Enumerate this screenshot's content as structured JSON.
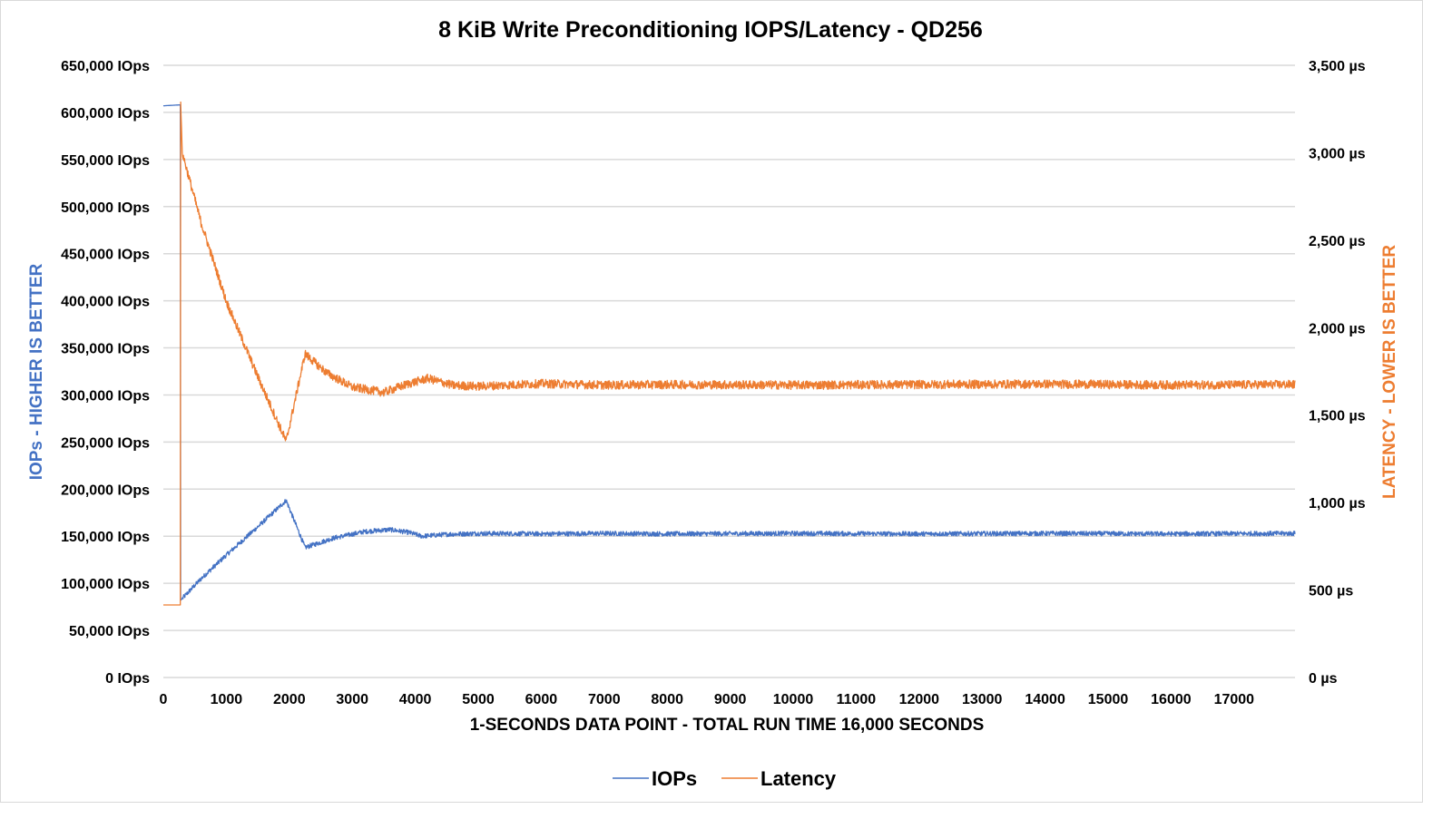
{
  "chart_data": {
    "type": "line",
    "title": "8 KiB Write Preconditioning IOPS/Latency - QD256",
    "xlabel": "1-SECONDS DATA POINT - TOTAL RUN TIME 16,000 SECONDS",
    "ylabel_left": "IOPs - HIGHER IS BETTER",
    "ylabel_right": "LATENCY - LOWER IS BETTER",
    "xlim": [
      0,
      17968
    ],
    "ylim_left": [
      0,
      650000
    ],
    "ylim_right": [
      0,
      3500
    ],
    "grid": true,
    "legend_position": "bottom",
    "x_ticks": [
      "0",
      "1000",
      "2000",
      "3000",
      "4000",
      "5000",
      "6000",
      "7000",
      "8000",
      "9000",
      "10000",
      "11000",
      "12000",
      "13000",
      "14000",
      "15000",
      "16000",
      "17000"
    ],
    "x_tick_values": [
      0,
      1000,
      2000,
      3000,
      4000,
      5000,
      6000,
      7000,
      8000,
      9000,
      10000,
      11000,
      12000,
      13000,
      14000,
      15000,
      16000,
      17000
    ],
    "y_left_ticks": [
      "0 IOps",
      "50,000 IOps",
      "100,000 IOps",
      "150,000 IOps",
      "200,000 IOps",
      "250,000 IOps",
      "300,000 IOps",
      "350,000 IOps",
      "400,000 IOps",
      "450,000 IOps",
      "500,000 IOps",
      "550,000 IOps",
      "600,000 IOps",
      "650,000 IOps"
    ],
    "y_left_tick_values": [
      0,
      50000,
      100000,
      150000,
      200000,
      250000,
      300000,
      350000,
      400000,
      450000,
      500000,
      550000,
      600000,
      650000
    ],
    "y_right_ticks": [
      "0 µs",
      "500 µs",
      "1,000 µs",
      "1,500 µs",
      "2,000 µs",
      "2,500 µs",
      "3,000 µs",
      "3,500 µs"
    ],
    "y_right_tick_values": [
      0,
      500,
      1000,
      1500,
      2000,
      2500,
      3000,
      3500
    ],
    "series": [
      {
        "name": "IOPs",
        "axis": "left",
        "color": "#4472C4",
        "noise": 2500,
        "x": [
          0,
          270,
          275,
          600,
          1000,
          1500,
          1950,
          2250,
          2700,
          3200,
          3600,
          3900,
          4100,
          4500,
          5000,
          6000,
          7000,
          8000,
          10000,
          12000,
          14000,
          16000,
          17968
        ],
        "values": [
          607000,
          608000,
          82000,
          105000,
          130000,
          160000,
          188000,
          138000,
          148000,
          155000,
          157000,
          154000,
          150000,
          152000,
          153000,
          152500,
          153000,
          152500,
          153000,
          152500,
          153000,
          152500,
          153000
        ]
      },
      {
        "name": "Latency",
        "axis": "right",
        "color": "#ED7D31",
        "noise": 25,
        "x": [
          0,
          270,
          275,
          300,
          600,
          1000,
          1500,
          1950,
          2250,
          2600,
          3000,
          3500,
          3900,
          4200,
          4600,
          5000,
          6000,
          7000,
          8000,
          10000,
          12000,
          14000,
          16000,
          17968
        ],
        "values": [
          415,
          415,
          3290,
          3000,
          2600,
          2150,
          1720,
          1350,
          1850,
          1740,
          1660,
          1630,
          1680,
          1710,
          1670,
          1665,
          1680,
          1672,
          1675,
          1672,
          1675,
          1678,
          1672,
          1675
        ]
      }
    ]
  }
}
